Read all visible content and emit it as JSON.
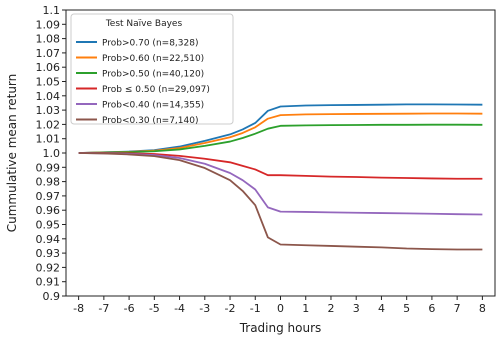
{
  "chart_data": {
    "type": "line",
    "title": "",
    "xlabel": "Trading hours",
    "ylabel": "Cummulative mean return",
    "xlim": [
      -8.5,
      8.5
    ],
    "ylim": [
      0.9,
      1.1
    ],
    "xticks": [
      -8,
      -7,
      -6,
      -5,
      -4,
      -3,
      -2,
      -1,
      0,
      1,
      2,
      3,
      4,
      5,
      6,
      7,
      8
    ],
    "xtick_labels": [
      "-8",
      "-7",
      "-6",
      "-5",
      "-4",
      "-3",
      "-2",
      "-1",
      "0",
      "1",
      "2",
      "3",
      "4",
      "5",
      "6",
      "7",
      "8"
    ],
    "yticks": [
      0.9,
      0.91,
      0.92,
      0.93,
      0.94,
      0.95,
      0.96,
      0.97,
      0.98,
      0.99,
      1.0,
      1.01,
      1.02,
      1.03,
      1.04,
      1.05,
      1.06,
      1.07,
      1.08,
      1.09,
      1.1
    ],
    "ytick_labels": [
      "0.9",
      "0.91",
      "0.92",
      "0.93",
      "0.94",
      "0.95",
      "0.96",
      "0.97",
      "0.98",
      "0.99",
      "1.0",
      "1.01",
      "1.02",
      "1.03",
      "1.04",
      "1.05",
      "1.06",
      "1.07",
      "1.08",
      "1.09",
      "1.1"
    ],
    "grid": false,
    "legend": {
      "title": "Test Naïve Bayes",
      "placement": "top-left"
    },
    "x": [
      -8,
      -7,
      -6,
      -5,
      -4,
      -3,
      -2,
      -1.5,
      -1,
      -0.5,
      0,
      1,
      2,
      3,
      4,
      5,
      6,
      7,
      8
    ],
    "series": [
      {
        "name": "Prob>0.70 (n=8,328)",
        "color": "#1f77b4",
        "values": [
          1.0,
          1.0005,
          1.001,
          1.002,
          1.0045,
          1.0085,
          1.013,
          1.0165,
          1.021,
          1.0295,
          1.0325,
          1.0332,
          1.0335,
          1.0336,
          1.0338,
          1.034,
          1.034,
          1.0339,
          1.0338
        ]
      },
      {
        "name": "Prob>0.60 (n=22,510)",
        "color": "#ff7f0e",
        "values": [
          1.0,
          1.0004,
          1.0008,
          1.0016,
          1.0035,
          1.007,
          1.011,
          1.014,
          1.018,
          1.024,
          1.0265,
          1.027,
          1.0272,
          1.0273,
          1.0274,
          1.0275,
          1.0276,
          1.0276,
          1.0275
        ]
      },
      {
        "name": "Prob>0.50 (n=40,120)",
        "color": "#2ca02c",
        "values": [
          1.0,
          1.0003,
          1.0006,
          1.0012,
          1.0025,
          1.005,
          1.008,
          1.0105,
          1.0135,
          1.017,
          1.019,
          1.0193,
          1.0195,
          1.0196,
          1.0197,
          1.0197,
          1.0198,
          1.0198,
          1.0197
        ]
      },
      {
        "name": "Prob ≤ 0.50 (n=29,097)",
        "color": "#d62728",
        "values": [
          1.0,
          1.0,
          0.9998,
          0.9993,
          0.998,
          0.996,
          0.9935,
          0.991,
          0.9885,
          0.9845,
          0.9845,
          0.984,
          0.9835,
          0.9832,
          0.9828,
          0.9825,
          0.9822,
          0.982,
          0.982
        ]
      },
      {
        "name": "Prob<0.40 (n=14,355)",
        "color": "#9467bd",
        "values": [
          1.0,
          0.9998,
          0.9994,
          0.9986,
          0.9965,
          0.9925,
          0.986,
          0.981,
          0.9745,
          0.962,
          0.959,
          0.9588,
          0.9585,
          0.9582,
          0.958,
          0.9578,
          0.9575,
          0.9572,
          0.957
        ]
      },
      {
        "name": "Prob<0.30 (n=7,140)",
        "color": "#8c564b",
        "values": [
          1.0,
          0.9997,
          0.999,
          0.9978,
          0.995,
          0.9895,
          0.981,
          0.9735,
          0.9635,
          0.941,
          0.936,
          0.9355,
          0.935,
          0.9345,
          0.934,
          0.9332,
          0.9328,
          0.9325,
          0.9325
        ]
      }
    ]
  }
}
